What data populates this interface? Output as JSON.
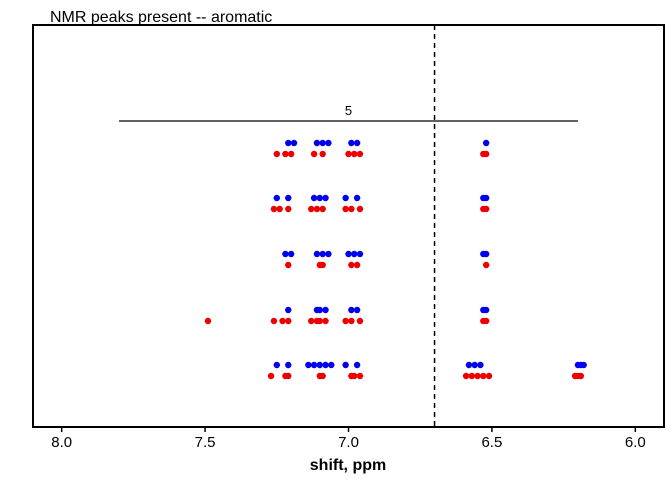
{
  "chart_data": {
    "type": "scatter",
    "title": "NMR peaks present -- aromatic",
    "xlabel": "shift, ppm",
    "ylabel": "",
    "xlim": [
      8.1,
      5.9
    ],
    "x_reversed": true,
    "x_ticks": [
      8.0,
      7.5,
      7.0,
      6.5,
      6.0
    ],
    "x_tick_labels": [
      "8.0",
      "7.5",
      "7.0",
      "6.5",
      "6.0"
    ],
    "grid": false,
    "reference_line": {
      "x": 6.7,
      "style": "dashed"
    },
    "bracket": {
      "x_start": 7.8,
      "x_end": 6.2,
      "label": "5"
    },
    "colors": {
      "blue": "#0000ee",
      "red": "#ee0000",
      "axis": "#000000"
    },
    "rows": [
      {
        "blue": [
          7.21,
          7.19,
          7.11,
          7.09,
          7.07,
          6.99,
          6.97,
          6.52
        ],
        "red": [
          7.25,
          7.22,
          7.2,
          7.12,
          7.09,
          7.0,
          6.98,
          6.96,
          6.53,
          6.52
        ]
      },
      {
        "blue": [
          7.25,
          7.21,
          7.12,
          7.1,
          7.08,
          7.01,
          6.97,
          6.53,
          6.52
        ],
        "red": [
          7.26,
          7.24,
          7.21,
          7.13,
          7.11,
          7.09,
          7.01,
          6.99,
          6.96,
          6.53,
          6.52
        ]
      },
      {
        "blue": [
          7.22,
          7.2,
          7.11,
          7.09,
          7.07,
          7.0,
          6.98,
          6.96,
          6.53,
          6.52
        ],
        "red": [
          7.21,
          7.1,
          7.09,
          6.99,
          6.97,
          6.52
        ]
      },
      {
        "blue": [
          7.21,
          7.11,
          7.1,
          7.08,
          6.99,
          6.97,
          6.53,
          6.52
        ],
        "red": [
          7.49,
          7.26,
          7.23,
          7.21,
          7.13,
          7.11,
          7.1,
          7.08,
          7.01,
          6.99,
          6.96,
          6.53,
          6.52
        ]
      },
      {
        "blue": [
          7.25,
          7.21,
          7.14,
          7.12,
          7.1,
          7.08,
          7.06,
          7.01,
          6.97,
          6.58,
          6.56,
          6.54,
          6.2,
          6.19,
          6.18
        ],
        "red": [
          7.27,
          7.22,
          7.21,
          7.1,
          7.09,
          6.99,
          6.98,
          6.96,
          6.59,
          6.57,
          6.55,
          6.53,
          6.51,
          6.21,
          6.2,
          6.19
        ]
      }
    ]
  }
}
